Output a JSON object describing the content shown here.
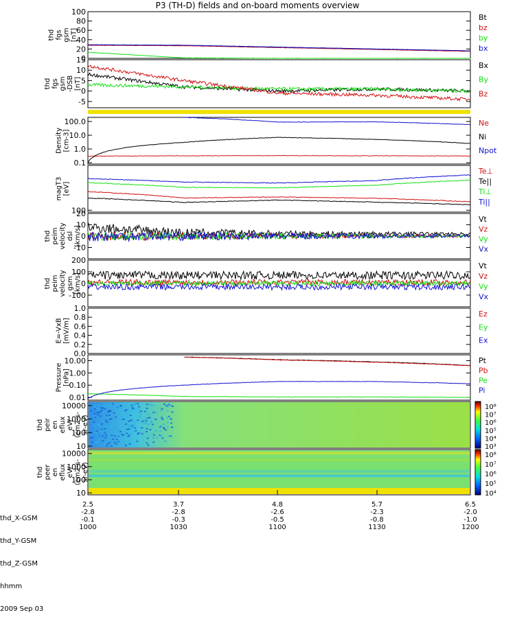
{
  "title": "P3 (TH-D) fields and on-board moments overview",
  "footer": {
    "rows": [
      {
        "label": "thd_X-GSM",
        "values": [
          "2.5",
          "3.7",
          "4.8",
          "5.7",
          "6.5"
        ]
      },
      {
        "label": "thd_Y-GSM",
        "values": [
          "-2.8",
          "-2.8",
          "-2.6",
          "-2.3",
          "-2.0"
        ]
      },
      {
        "label": "thd_Z-GSM",
        "values": [
          "-0.1",
          "-0.3",
          "-0.5",
          "-0.8",
          "-1.0"
        ]
      },
      {
        "label": "hhmm",
        "values": [
          "1000",
          "1030",
          "1100",
          "1130",
          "1200"
        ]
      }
    ],
    "date": "2009 Sep 03"
  },
  "colors": {
    "black": "#000000",
    "red": "#d01010",
    "green": "#10e010",
    "blue": "#1010d0",
    "yellow": "#f0e000"
  },
  "chart_data": [
    {
      "type": "line",
      "id": "fgs",
      "ylabel": [
        "thd",
        "fgs",
        "gsm",
        "[nT]"
      ],
      "yticks": [
        "100",
        "80",
        "60",
        "40",
        "20",
        "0"
      ],
      "ylim": [
        0,
        100
      ],
      "x": [
        0,
        0.5,
        1,
        1.5,
        2
      ],
      "series": [
        {
          "name": "Bt",
          "color": "black",
          "values": [
            29,
            28,
            24,
            20,
            16
          ]
        },
        {
          "name": "bz",
          "color": "red",
          "values": [
            28,
            27,
            23,
            19,
            15
          ]
        },
        {
          "name": "by",
          "color": "green",
          "values": [
            13,
            1,
            0,
            0,
            0
          ]
        },
        {
          "name": "bx",
          "color": "blue",
          "values": [
            29,
            28,
            24,
            20,
            16
          ]
        }
      ]
    },
    {
      "type": "line",
      "id": "fgs-dsl",
      "ylabel": [
        "thd",
        "fgs",
        "gsm",
        "-DSB",
        "[nT]"
      ],
      "yticks": [
        "15",
        "10",
        "5",
        "0",
        "-5"
      ],
      "ylim": [
        -8,
        15
      ],
      "x": [
        0,
        0.5,
        1,
        1.5,
        2
      ],
      "series": [
        {
          "name": "Bx",
          "color": "black",
          "values": [
            8,
            2,
            0,
            1,
            0
          ]
        },
        {
          "name": "By",
          "color": "green",
          "values": [
            3,
            2,
            1,
            1,
            0
          ]
        },
        {
          "name": "Bz",
          "color": "red",
          "values": [
            12,
            5,
            -1,
            -2,
            -4
          ]
        }
      ]
    },
    {
      "type": "line",
      "id": "density",
      "ylog": true,
      "ylabel": [
        "Density",
        "[cm-3]"
      ],
      "yticks": [
        "100.0",
        "10.0",
        "1.0",
        "0.1"
      ],
      "ylim": [
        0.08,
        200
      ],
      "x": [
        0,
        0.5,
        1,
        1.5,
        2
      ],
      "series": [
        {
          "name": "Ne",
          "color": "red",
          "values": [
            0.3,
            0.32,
            0.33,
            0.32,
            0.31
          ]
        },
        {
          "name": "Ni",
          "color": "black",
          "values": [
            0.1,
            3.0,
            7.0,
            5.0,
            2.5
          ]
        },
        {
          "name": "Npot",
          "color": "blue",
          "values": [
            null,
            200,
            90,
            95,
            60
          ]
        }
      ]
    },
    {
      "type": "line",
      "id": "temperature",
      "ylog": true,
      "ylabel": [
        "magT3",
        "[eV]"
      ],
      "yticks": [
        "100"
      ],
      "ylim": [
        80,
        20000
      ],
      "x": [
        0,
        0.5,
        1,
        1.5,
        2
      ],
      "series": [
        {
          "name": "Te⊥",
          "color": "red",
          "values": [
            900,
            420,
            480,
            410,
            270
          ]
        },
        {
          "name": "Te||",
          "color": "black",
          "values": [
            420,
            250,
            330,
            260,
            190
          ]
        },
        {
          "name": "Ti⊥",
          "color": "green",
          "values": [
            2600,
            1500,
            1400,
            1900,
            3500
          ]
        },
        {
          "name": "Ti||",
          "color": "blue",
          "values": [
            4200,
            2800,
            2500,
            3300,
            6500
          ]
        }
      ]
    },
    {
      "type": "line",
      "id": "vel-dsl",
      "ylabel": [
        "thd",
        "peim",
        "velocity",
        "dsl",
        "[km/s]"
      ],
      "yticks": [
        "20",
        "10",
        "0",
        "-10"
      ],
      "ylim": [
        -20,
        20
      ],
      "x": [
        0,
        0.5,
        1,
        1.5,
        2
      ],
      "series": [
        {
          "name": "Vt",
          "color": "black",
          "values": [
            8,
            3,
            2,
            2,
            2
          ]
        },
        {
          "name": "Vz",
          "color": "red",
          "values": [
            0,
            0,
            0,
            0,
            0
          ]
        },
        {
          "name": "Vy",
          "color": "green",
          "values": [
            0,
            0,
            0,
            0,
            0
          ]
        },
        {
          "name": "Vx",
          "color": "blue",
          "values": [
            0,
            0,
            0,
            0,
            0
          ]
        }
      ]
    },
    {
      "type": "line",
      "id": "vel-gsm",
      "ylabel": [
        "thd",
        "peim",
        "velocity",
        "gsm",
        "[km/s]"
      ],
      "yticks": [
        "200",
        "100",
        "0",
        "-100"
      ],
      "ylim": [
        -200,
        200
      ],
      "x": [
        0,
        0.5,
        1,
        1.5,
        2
      ],
      "series": [
        {
          "name": "Vt",
          "color": "black",
          "values": [
            70,
            70,
            70,
            70,
            70
          ]
        },
        {
          "name": "Vz",
          "color": "red",
          "values": [
            10,
            10,
            10,
            10,
            10
          ]
        },
        {
          "name": "Vy",
          "color": "green",
          "values": [
            0,
            0,
            0,
            0,
            0
          ]
        },
        {
          "name": "Vx",
          "color": "blue",
          "values": [
            -30,
            -30,
            -30,
            -30,
            -30
          ]
        }
      ]
    },
    {
      "type": "line",
      "id": "efield",
      "ylabel": [
        "E=-VxB",
        "[mV/m]"
      ],
      "yticks": [
        "1.0",
        "0.8",
        "0.6",
        "0.4",
        "0.2",
        "0.0"
      ],
      "ylim": [
        0,
        1
      ],
      "x": [],
      "series": [
        {
          "name": "Ez",
          "color": "red",
          "values": []
        },
        {
          "name": "Ey",
          "color": "green",
          "values": []
        },
        {
          "name": "Ex",
          "color": "blue",
          "values": []
        }
      ]
    },
    {
      "type": "line",
      "id": "pressure",
      "ylog": true,
      "ylabel": [
        "Pressure",
        "[nPa]"
      ],
      "yticks": [
        "10.00",
        "1.00",
        "0.10",
        "0.01"
      ],
      "ylim": [
        0.006,
        30
      ],
      "x": [
        0,
        0.5,
        1,
        1.5,
        2
      ],
      "series": [
        {
          "name": "Pt",
          "color": "black",
          "values": [
            null,
            20,
            12,
            8,
            4
          ]
        },
        {
          "name": "Pb",
          "color": "red",
          "values": [
            null,
            19.5,
            11.5,
            7.5,
            3.8
          ]
        },
        {
          "name": "Pe",
          "color": "green",
          "values": [
            0.02,
            0.012,
            0.011,
            0.011,
            0.01
          ]
        },
        {
          "name": "Pi",
          "color": "blue",
          "values": [
            0.008,
            0.1,
            0.2,
            0.2,
            0.13
          ]
        }
      ]
    },
    {
      "type": "heatmap",
      "id": "peir",
      "ylabel": [
        "thd",
        "peir",
        "en",
        "eflux",
        "eV/",
        "(cm2-s-",
        "sr-eV)"
      ],
      "yticks": [
        "10000",
        "1000",
        "100",
        "10"
      ],
      "colorbar_ticks": [
        "10⁸",
        "10⁷",
        "10⁶",
        "10⁵",
        "10⁴",
        "10³"
      ]
    },
    {
      "type": "heatmap",
      "id": "peer",
      "ylabel": [
        "thd",
        "peer",
        "en",
        "eflux",
        "eV/",
        "(cm2-s-",
        "sr-eV)"
      ],
      "yticks": [
        "10000",
        "1000",
        "100",
        "10"
      ],
      "colorbar_ticks": [
        "10⁸",
        "10⁷",
        "10⁶",
        "10⁵",
        "10⁴"
      ]
    }
  ]
}
